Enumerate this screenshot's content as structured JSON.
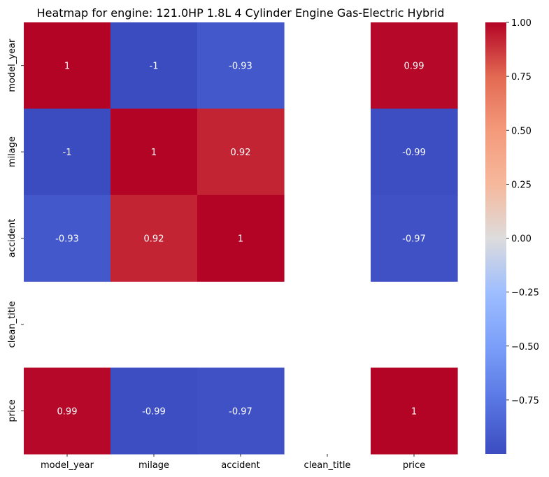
{
  "chart_data": {
    "type": "heatmap",
    "title": "Heatmap for engine: 121.0HP 1.8L 4 Cylinder Engine Gas-Electric Hybrid",
    "x_labels": [
      "model_year",
      "milage",
      "accident",
      "clean_title",
      "price"
    ],
    "y_labels": [
      "model_year",
      "milage",
      "accident",
      "clean_title",
      "price"
    ],
    "values": [
      [
        1.0,
        -1.0,
        -0.93,
        null,
        0.99
      ],
      [
        -1.0,
        1.0,
        0.92,
        null,
        -0.99
      ],
      [
        -0.93,
        0.92,
        1.0,
        null,
        -0.97
      ],
      [
        null,
        null,
        null,
        null,
        null
      ],
      [
        0.99,
        -0.99,
        -0.97,
        null,
        1.0
      ]
    ],
    "annotations": [
      [
        "1",
        "-1",
        "-0.93",
        "",
        "0.99"
      ],
      [
        "-1",
        "1",
        "0.92",
        "",
        "-0.99"
      ],
      [
        "-0.93",
        "0.92",
        "1",
        "",
        "-0.97"
      ],
      [
        "",
        "",
        "",
        "",
        ""
      ],
      [
        "0.99",
        "-0.99",
        "-0.97",
        "",
        "1"
      ]
    ],
    "colormap": "coolwarm",
    "vmin": -1.0,
    "vmax": 1.0,
    "colorbar_ticks": [
      1.0,
      0.75,
      0.5,
      0.25,
      0.0,
      -0.25,
      -0.5,
      -0.75
    ],
    "colorbar_tick_labels": [
      "1.00",
      "0.75",
      "0.50",
      "0.25",
      "0.00",
      "−0.25",
      "−0.50",
      "−0.75"
    ],
    "legend": "colorbar-right",
    "grid": false
  }
}
